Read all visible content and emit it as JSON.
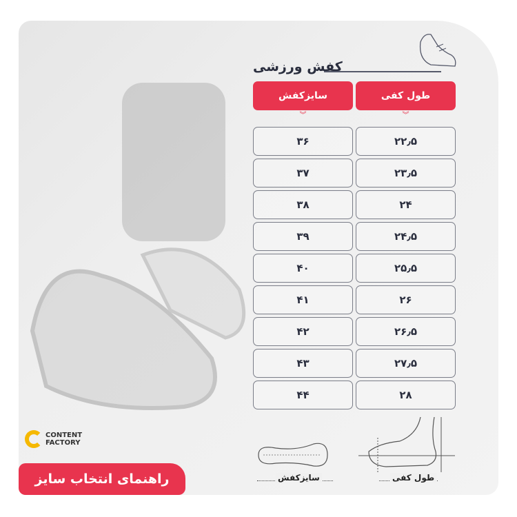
{
  "title": "کفش ورزشی",
  "headers": {
    "foot_length": "طول کفی",
    "shoe_size": "سایزکفش"
  },
  "rows": [
    {
      "foot_length": "۲۲٫۵",
      "shoe_size": "۳۶"
    },
    {
      "foot_length": "۲۳٫۵",
      "shoe_size": "۳۷"
    },
    {
      "foot_length": "۲۴",
      "shoe_size": "۳۸"
    },
    {
      "foot_length": "۲۴٫۵",
      "shoe_size": "۳۹"
    },
    {
      "foot_length": "۲۵٫۵",
      "shoe_size": "۴۰"
    },
    {
      "foot_length": "۲۶",
      "shoe_size": "۴۱"
    },
    {
      "foot_length": "۲۶٫۵",
      "shoe_size": "۴۲"
    },
    {
      "foot_length": "۲۷٫۵",
      "shoe_size": "۴۳"
    },
    {
      "foot_length": "۲۸",
      "shoe_size": "۴۴"
    }
  ],
  "logo": {
    "line1": "CONTENT",
    "line2": "FACTORY"
  },
  "badge": "راهنمای انتخاب سایز",
  "diagram_labels": {
    "shoe_size": "سایزکفش",
    "foot_length": "طول کفی"
  },
  "colors": {
    "accent": "#e8344e",
    "text": "#2a2e3e",
    "logo": "#f5b800"
  }
}
